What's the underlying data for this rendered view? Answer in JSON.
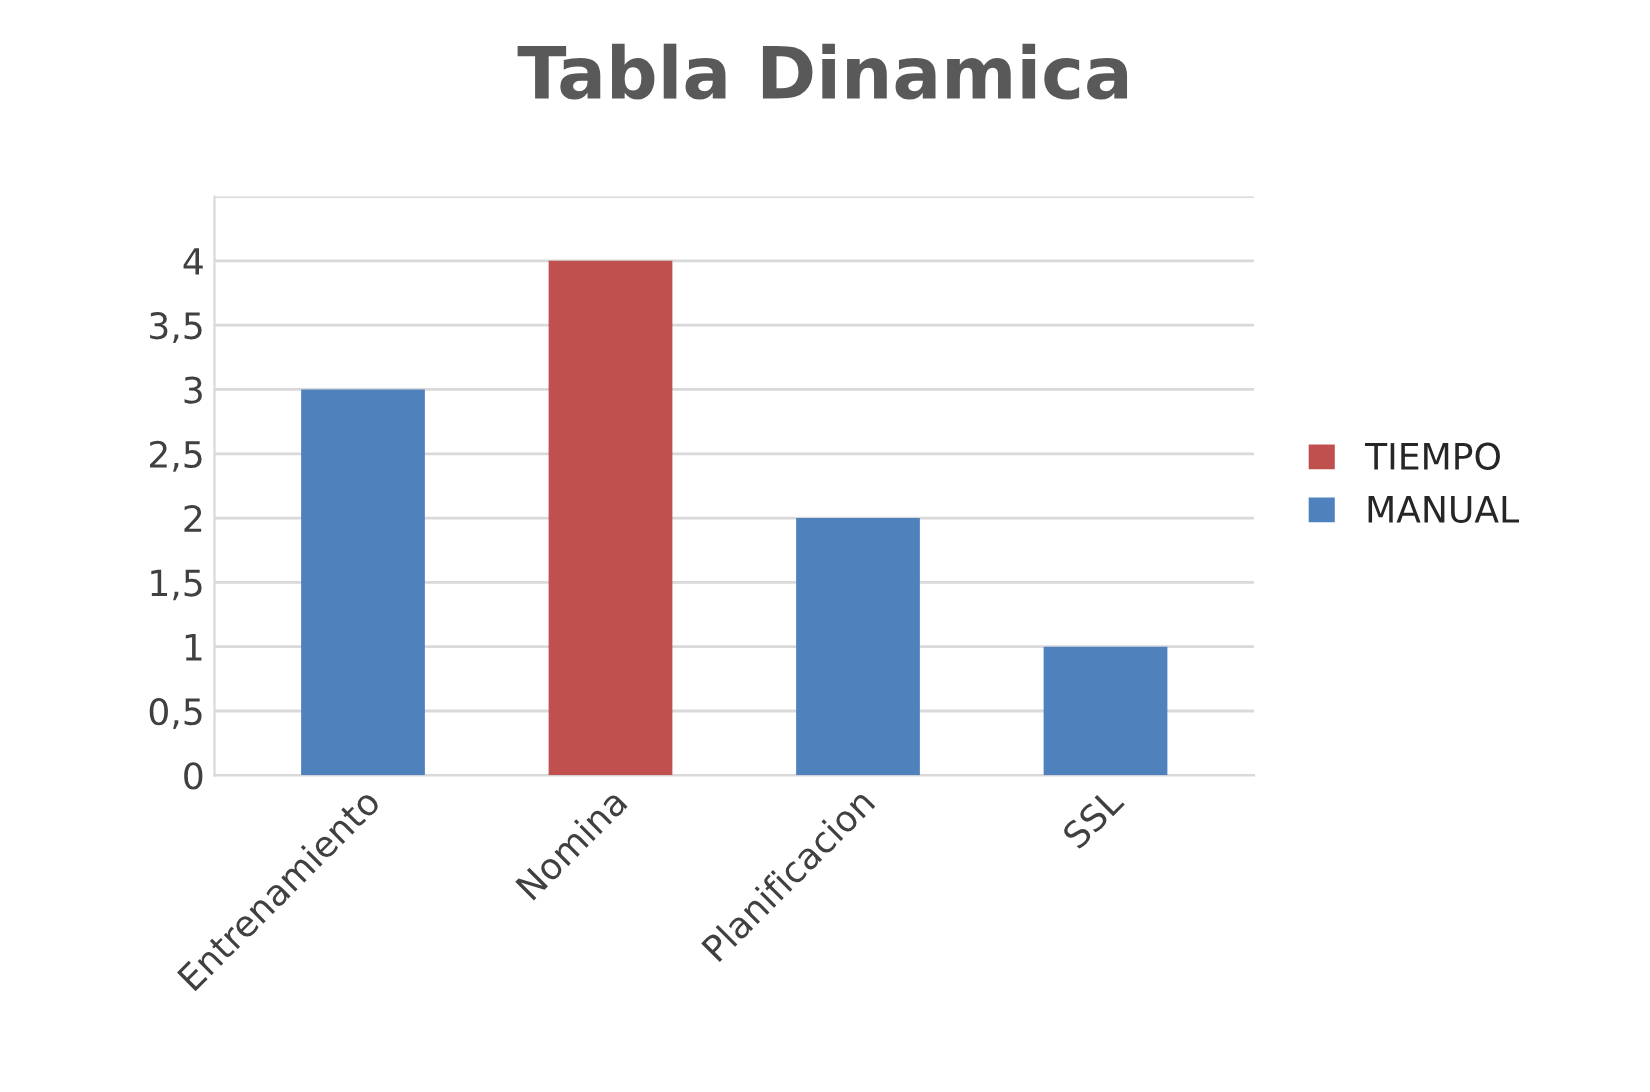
{
  "chart_data": {
    "type": "bar",
    "title": "Tabla Dinamica",
    "categories": [
      "Entrenamiento",
      "Nomina",
      "Planificacion",
      "SSL"
    ],
    "series": [
      {
        "name": "TIEMPO",
        "color": "#c0504d",
        "values": [
          null,
          4,
          null,
          null
        ]
      },
      {
        "name": "MANUAL",
        "color": "#4f81bd",
        "values": [
          3,
          null,
          2,
          1
        ]
      }
    ],
    "ylim": [
      0,
      4.5
    ],
    "yticks": [
      0,
      {
        "value": 0.5,
        "label": "0,5"
      },
      1,
      {
        "value": 1.5,
        "label": "1,5"
      },
      2,
      {
        "value": 2.5,
        "label": "2,5"
      },
      3,
      {
        "value": 3.5,
        "label": "3,5"
      },
      4,
      {
        "value": 4.5,
        "label": null
      }
    ],
    "grid": "y",
    "legend": "right"
  }
}
